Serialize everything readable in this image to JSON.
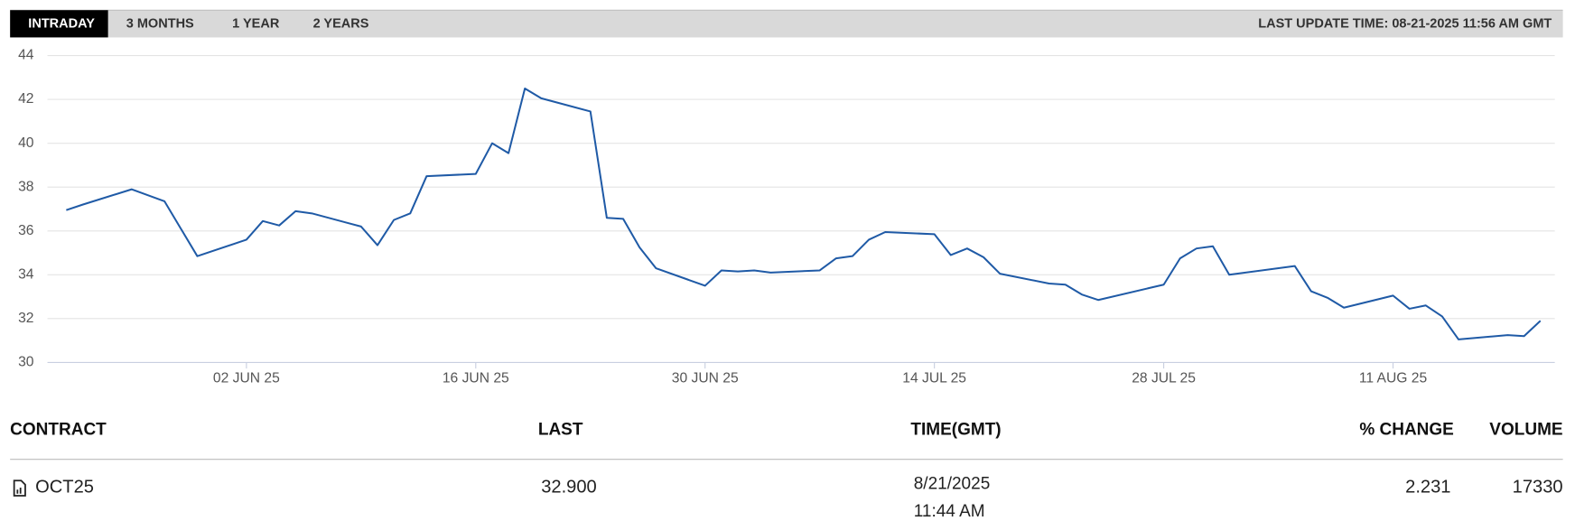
{
  "tabs": [
    {
      "label": "INTRADAY",
      "active": true
    },
    {
      "label": "3 MONTHS",
      "active": false
    },
    {
      "label": "1 YEAR",
      "active": false
    },
    {
      "label": "2 YEARS",
      "active": false
    }
  ],
  "last_update": "LAST UPDATE TIME: 08-21-2025 11:56 AM GMT",
  "chart_data": {
    "type": "line",
    "color": "#1f5aa6",
    "grid": true,
    "x": [
      "2025-05-22",
      "2025-05-23",
      "2025-05-26",
      "2025-05-28",
      "2025-05-29",
      "2025-05-30",
      "2025-06-02",
      "2025-06-03",
      "2025-06-04",
      "2025-06-05",
      "2025-06-06",
      "2025-06-09",
      "2025-06-10",
      "2025-06-11",
      "2025-06-12",
      "2025-06-13",
      "2025-06-16",
      "2025-06-17",
      "2025-06-18",
      "2025-06-19",
      "2025-06-20",
      "2025-06-23",
      "2025-06-24",
      "2025-06-25",
      "2025-06-26",
      "2025-06-27",
      "2025-06-30",
      "2025-07-01",
      "2025-07-02",
      "2025-07-03",
      "2025-07-04",
      "2025-07-07",
      "2025-07-08",
      "2025-07-09",
      "2025-07-10",
      "2025-07-11",
      "2025-07-14",
      "2025-07-15",
      "2025-07-16",
      "2025-07-17",
      "2025-07-18",
      "2025-07-21",
      "2025-07-22",
      "2025-07-23",
      "2025-07-24",
      "2025-07-28",
      "2025-07-29",
      "2025-07-30",
      "2025-07-31",
      "2025-08-01",
      "2025-08-05",
      "2025-08-06",
      "2025-08-07",
      "2025-08-08",
      "2025-08-11",
      "2025-08-12",
      "2025-08-13",
      "2025-08-14",
      "2025-08-15",
      "2025-08-18",
      "2025-08-19",
      "2025-08-20"
    ],
    "values": [
      36.95,
      37.2,
      37.9,
      37.35,
      36.1,
      34.85,
      35.6,
      36.45,
      36.25,
      36.9,
      36.8,
      36.2,
      35.35,
      36.5,
      36.8,
      38.5,
      38.6,
      40.0,
      39.55,
      42.5,
      42.05,
      41.45,
      36.6,
      36.55,
      35.25,
      34.3,
      33.5,
      34.2,
      34.15,
      34.2,
      34.1,
      34.2,
      34.75,
      34.85,
      35.6,
      35.95,
      35.85,
      34.9,
      35.2,
      34.8,
      34.05,
      33.6,
      33.55,
      33.1,
      32.85,
      33.55,
      34.75,
      35.2,
      35.3,
      34.0,
      34.4,
      33.25,
      32.95,
      32.5,
      33.05,
      32.45,
      32.6,
      32.1,
      31.05,
      31.25,
      31.2,
      31.9
    ],
    "xlim": [
      "2025-05-21",
      "2025-08-21"
    ],
    "xticks": [
      {
        "value": "2025-06-02",
        "label": "02 JUN 25"
      },
      {
        "value": "2025-06-16",
        "label": "16 JUN 25"
      },
      {
        "value": "2025-06-30",
        "label": "30 JUN 25"
      },
      {
        "value": "2025-07-14",
        "label": "14 JUL 25"
      },
      {
        "value": "2025-07-28",
        "label": "28 JUL 25"
      },
      {
        "value": "2025-08-11",
        "label": "11 AUG 25"
      }
    ],
    "ylim": [
      30,
      44
    ],
    "yticks": [
      30,
      32,
      34,
      36,
      38,
      40,
      42,
      44
    ]
  },
  "table": {
    "headers": [
      "CONTRACT",
      "LAST",
      "TIME(GMT)",
      "% CHANGE",
      "VOLUME"
    ],
    "rows": [
      {
        "contract": "OCT25",
        "last": "32.900",
        "date": "8/21/2025",
        "time": "11:44 AM",
        "change": "2.231",
        "volume": "17330"
      }
    ]
  }
}
